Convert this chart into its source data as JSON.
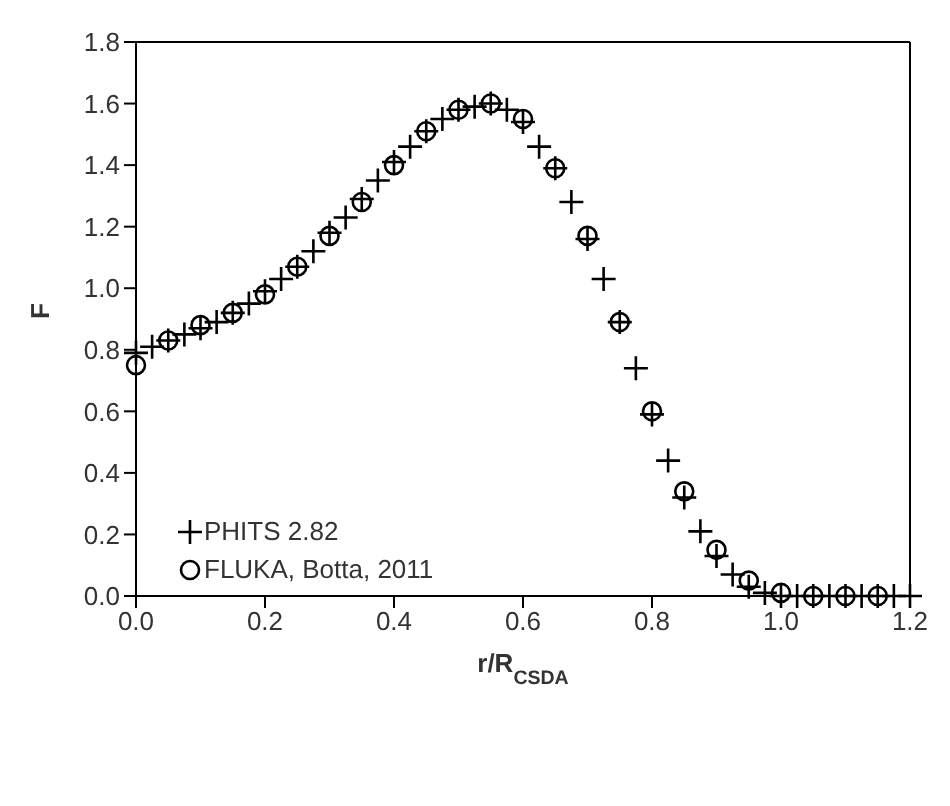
{
  "chart_data": {
    "type": "scatter",
    "xlabel": "r/R$_{CSDA}$",
    "ylabel": "F",
    "xlim": [
      0,
      1.2
    ],
    "xticks": [
      {
        "value": 0,
        "label": "0.0"
      },
      0.2,
      0.4,
      0.6,
      0.8,
      {
        "value": 1,
        "label": "1.0"
      },
      1.2
    ],
    "ylim": [
      0,
      1.8
    ],
    "yticks": [
      {
        "value": 0,
        "label": "0.0"
      },
      0.2,
      0.4,
      0.6,
      0.8,
      {
        "value": 1,
        "label": "1.0"
      },
      1.2,
      1.4,
      1.6,
      1.8
    ],
    "legend": "bottom left",
    "series": [
      {
        "name": "PHITS 2.82",
        "color": "#000000",
        "marker": "cross",
        "x": [
          0,
          0.025,
          0.05,
          0.075,
          0.1,
          0.125,
          0.15,
          0.175,
          0.2,
          0.225,
          0.25,
          0.275,
          0.3,
          0.325,
          0.35,
          0.375,
          0.4,
          0.425,
          0.45,
          0.475,
          0.5,
          0.525,
          0.55,
          0.575,
          0.6,
          0.625,
          0.65,
          0.675,
          0.7,
          0.725,
          0.75,
          0.775,
          0.8,
          0.825,
          0.85,
          0.875,
          0.9,
          0.925,
          0.95,
          0.975,
          1,
          1.025,
          1.05,
          1.075,
          1.1,
          1.125,
          1.15,
          1.175,
          1.2
        ],
        "values": [
          0.79,
          0.81,
          0.83,
          0.85,
          0.87,
          0.89,
          0.92,
          0.95,
          0.99,
          1.03,
          1.07,
          1.12,
          1.18,
          1.23,
          1.29,
          1.35,
          1.41,
          1.46,
          1.51,
          1.55,
          1.58,
          1.59,
          1.6,
          1.58,
          1.54,
          1.46,
          1.39,
          1.28,
          1.16,
          1.03,
          0.89,
          0.74,
          0.59,
          0.44,
          0.32,
          0.21,
          0.13,
          0.07,
          0.03,
          0.01,
          0,
          0,
          0,
          0,
          0,
          0,
          0,
          0,
          0
        ]
      },
      {
        "name": "FLUKA, Botta, 2011",
        "color": "#000000",
        "marker": "circle",
        "x": [
          0,
          0.05,
          0.1,
          0.15,
          0.2,
          0.25,
          0.3,
          0.35,
          0.4,
          0.45,
          0.5,
          0.55,
          0.6,
          0.65,
          0.7,
          0.75,
          0.8,
          0.85,
          0.9,
          0.95,
          1,
          1.05,
          1.1,
          1.15
        ],
        "values": [
          0.75,
          0.83,
          0.88,
          0.92,
          0.98,
          1.07,
          1.17,
          1.28,
          1.4,
          1.51,
          1.58,
          1.6,
          1.55,
          1.39,
          1.17,
          0.89,
          0.6,
          0.34,
          0.15,
          0.05,
          0.01,
          0,
          0,
          0
        ]
      }
    ]
  }
}
